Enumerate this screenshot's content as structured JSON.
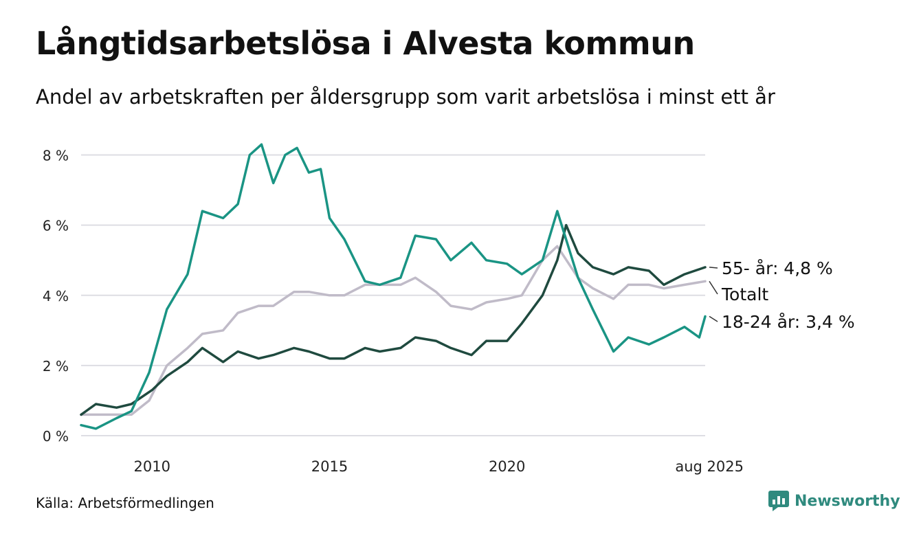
{
  "title": "Långtidsarbetslösa i Alvesta kommun",
  "subtitle": "Andel av arbetskraften per åldersgrupp som varit arbetslösa i minst ett år",
  "source": "Källa: Arbetsförmedlingen",
  "brand": {
    "name": "Newsworthy",
    "icon": "newsworthy-logo-icon",
    "color": "#2f8a7e"
  },
  "chart_data": {
    "type": "line",
    "x_range": [
      "2008-01",
      "2025-08"
    ],
    "ylim": [
      0,
      8.5
    ],
    "y_ticks": [
      0,
      2,
      4,
      6,
      8
    ],
    "y_tick_labels": [
      "0 %",
      "2 %",
      "4 %",
      "6 %",
      "8 %"
    ],
    "x_ticks": [
      2010,
      2015,
      2020,
      "2025-08"
    ],
    "x_tick_labels": [
      "2010",
      "2015",
      "2020",
      "aug 2025"
    ],
    "grid": true,
    "series": [
      {
        "name": "Totalt",
        "label": "Totalt",
        "color": "#c0bbc8",
        "points": [
          [
            "2008-01",
            0.6
          ],
          [
            "2008-06",
            0.6
          ],
          [
            "2009-06",
            0.6
          ],
          [
            "2009-12",
            1.0
          ],
          [
            "2010-06",
            2.0
          ],
          [
            "2011-01",
            2.5
          ],
          [
            "2011-06",
            2.9
          ],
          [
            "2012-01",
            3.0
          ],
          [
            "2012-06",
            3.5
          ],
          [
            "2013-01",
            3.7
          ],
          [
            "2013-06",
            3.7
          ],
          [
            "2014-01",
            4.1
          ],
          [
            "2014-06",
            4.1
          ],
          [
            "2015-01",
            4.0
          ],
          [
            "2015-06",
            4.0
          ],
          [
            "2016-01",
            4.3
          ],
          [
            "2016-06",
            4.3
          ],
          [
            "2017-01",
            4.3
          ],
          [
            "2017-06",
            4.5
          ],
          [
            "2018-01",
            4.1
          ],
          [
            "2018-06",
            3.7
          ],
          [
            "2019-01",
            3.6
          ],
          [
            "2019-06",
            3.8
          ],
          [
            "2020-01",
            3.9
          ],
          [
            "2020-06",
            4.0
          ],
          [
            "2021-01",
            5.0
          ],
          [
            "2021-06",
            5.4
          ],
          [
            "2022-01",
            4.5
          ],
          [
            "2022-06",
            4.2
          ],
          [
            "2023-01",
            3.9
          ],
          [
            "2023-06",
            4.3
          ],
          [
            "2024-01",
            4.3
          ],
          [
            "2024-06",
            4.2
          ],
          [
            "2025-01",
            4.3
          ],
          [
            "2025-08",
            4.4
          ]
        ]
      },
      {
        "name": "55- år",
        "label": "55- år: 4,8 %",
        "color": "#1f4a3f",
        "points": [
          [
            "2008-01",
            0.6
          ],
          [
            "2008-06",
            0.9
          ],
          [
            "2009-01",
            0.8
          ],
          [
            "2009-06",
            0.9
          ],
          [
            "2010-01",
            1.3
          ],
          [
            "2010-06",
            1.7
          ],
          [
            "2011-01",
            2.1
          ],
          [
            "2011-06",
            2.5
          ],
          [
            "2012-01",
            2.1
          ],
          [
            "2012-06",
            2.4
          ],
          [
            "2013-01",
            2.2
          ],
          [
            "2013-06",
            2.3
          ],
          [
            "2014-01",
            2.5
          ],
          [
            "2014-06",
            2.4
          ],
          [
            "2015-01",
            2.2
          ],
          [
            "2015-06",
            2.2
          ],
          [
            "2016-01",
            2.5
          ],
          [
            "2016-06",
            2.4
          ],
          [
            "2017-01",
            2.5
          ],
          [
            "2017-06",
            2.8
          ],
          [
            "2018-01",
            2.7
          ],
          [
            "2018-06",
            2.5
          ],
          [
            "2019-01",
            2.3
          ],
          [
            "2019-06",
            2.7
          ],
          [
            "2020-01",
            2.7
          ],
          [
            "2020-06",
            3.2
          ],
          [
            "2021-01",
            4.0
          ],
          [
            "2021-06",
            5.0
          ],
          [
            "2021-09",
            6.0
          ],
          [
            "2022-01",
            5.2
          ],
          [
            "2022-06",
            4.8
          ],
          [
            "2023-01",
            4.6
          ],
          [
            "2023-06",
            4.8
          ],
          [
            "2024-01",
            4.7
          ],
          [
            "2024-06",
            4.3
          ],
          [
            "2025-01",
            4.6
          ],
          [
            "2025-08",
            4.8
          ]
        ]
      },
      {
        "name": "18-24 år",
        "label": "18-24 år: 3,4 %",
        "color": "#1a9484",
        "points": [
          [
            "2008-01",
            0.3
          ],
          [
            "2008-06",
            0.2
          ],
          [
            "2009-01",
            0.5
          ],
          [
            "2009-06",
            0.7
          ],
          [
            "2009-12",
            1.8
          ],
          [
            "2010-06",
            3.6
          ],
          [
            "2011-01",
            4.6
          ],
          [
            "2011-06",
            6.4
          ],
          [
            "2012-01",
            6.2
          ],
          [
            "2012-06",
            6.6
          ],
          [
            "2012-10",
            8.0
          ],
          [
            "2013-02",
            8.3
          ],
          [
            "2013-06",
            7.2
          ],
          [
            "2013-10",
            8.0
          ],
          [
            "2014-02",
            8.2
          ],
          [
            "2014-06",
            7.5
          ],
          [
            "2014-10",
            7.6
          ],
          [
            "2015-01",
            6.2
          ],
          [
            "2015-06",
            5.6
          ],
          [
            "2016-01",
            4.4
          ],
          [
            "2016-06",
            4.3
          ],
          [
            "2017-01",
            4.5
          ],
          [
            "2017-06",
            5.7
          ],
          [
            "2018-01",
            5.6
          ],
          [
            "2018-06",
            5.0
          ],
          [
            "2019-01",
            5.5
          ],
          [
            "2019-06",
            5.0
          ],
          [
            "2020-01",
            4.9
          ],
          [
            "2020-06",
            4.6
          ],
          [
            "2021-01",
            5.0
          ],
          [
            "2021-06",
            6.4
          ],
          [
            "2022-01",
            4.5
          ],
          [
            "2022-06",
            3.6
          ],
          [
            "2023-01",
            2.4
          ],
          [
            "2023-06",
            2.8
          ],
          [
            "2024-01",
            2.6
          ],
          [
            "2024-06",
            2.8
          ],
          [
            "2025-01",
            3.1
          ],
          [
            "2025-06",
            2.8
          ],
          [
            "2025-08",
            3.4
          ]
        ]
      }
    ]
  }
}
